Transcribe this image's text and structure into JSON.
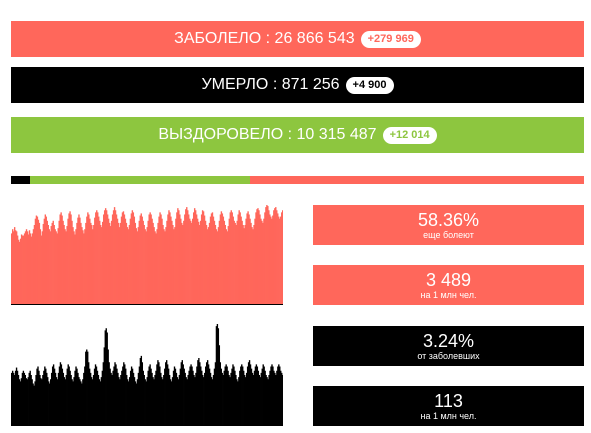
{
  "colors": {
    "cases": "#ff675b",
    "deaths": "#000000",
    "recovered": "#8dc63f"
  },
  "summary": {
    "cases": {
      "label": "ЗАБОЛЕЛО : 26 866 543",
      "delta": "+279 969"
    },
    "deaths": {
      "label": "УМЕРЛО : 871 256",
      "delta": "+4 900"
    },
    "recovered": {
      "label": "ВЫЗДОРОВЕЛО : 10 315 487",
      "delta": "+12 014"
    }
  },
  "ratio_bar": {
    "segments": [
      {
        "name": "deaths",
        "fraction": 0.0324,
        "color": "#000000"
      },
      {
        "name": "recovered",
        "fraction": 0.384,
        "color": "#8dc63f"
      },
      {
        "name": "active",
        "fraction": 0.5836,
        "color": "#ff675b"
      }
    ]
  },
  "stats": {
    "active_percent": {
      "value": "58.36%",
      "caption": "еще болеют"
    },
    "cases_per_million": {
      "value": "3 489",
      "caption": "на 1 млн чел."
    },
    "mortality": {
      "value": "3.24%",
      "caption": "от заболевших"
    },
    "deaths_per_million": {
      "value": "113",
      "caption": "на 1 млн чел."
    }
  },
  "chart_data": [
    {
      "type": "bar",
      "series": [
        {
          "color": "#ff675b",
          "values": [
            68,
            72,
            70,
            74,
            71,
            70,
            66,
            62,
            60,
            63,
            67,
            66,
            66,
            68,
            70,
            72,
            70,
            67,
            71,
            68,
            65,
            68,
            72,
            76,
            82,
            85,
            84,
            81,
            78,
            72,
            66,
            70,
            77,
            82,
            86,
            84,
            80,
            76,
            72,
            70,
            75,
            78,
            80,
            76,
            72,
            70,
            68,
            73,
            80,
            86,
            88,
            85,
            80,
            76,
            72,
            70,
            75,
            82,
            87,
            89,
            86,
            80,
            74,
            70,
            67,
            72,
            78,
            83,
            86,
            83,
            78,
            74,
            71,
            68,
            72,
            78,
            84,
            88,
            86,
            82,
            78,
            76,
            72,
            76,
            83,
            88,
            90,
            88,
            84,
            80,
            76,
            74,
            79,
            86,
            90,
            92,
            90,
            86,
            82,
            78,
            75,
            80,
            86,
            90,
            93,
            90,
            86,
            82,
            78,
            74,
            78,
            84,
            88,
            89,
            86,
            82,
            78,
            74,
            72,
            76,
            82,
            87,
            90,
            88,
            84,
            78,
            73,
            70,
            74,
            80,
            85,
            87,
            84,
            80,
            76,
            72,
            70,
            74,
            80,
            86,
            88,
            86,
            82,
            78,
            74,
            70,
            68,
            72,
            78,
            84,
            88,
            86,
            82,
            76,
            72,
            70,
            74,
            80,
            86,
            90,
            88,
            84,
            80,
            76,
            72,
            74,
            82,
            88,
            92,
            90,
            86,
            82,
            78,
            76,
            80,
            86,
            91,
            93,
            90,
            86,
            82,
            80,
            78,
            82,
            88,
            92,
            90,
            86,
            82,
            79,
            76,
            80,
            86,
            90,
            89,
            85,
            80,
            76,
            72,
            74,
            78,
            84,
            87,
            88,
            84,
            80,
            76,
            72,
            70,
            74,
            80,
            86,
            89,
            87,
            84,
            80,
            76,
            72,
            70,
            75,
            82,
            88,
            90,
            88,
            84,
            80,
            78,
            76,
            80,
            86,
            90,
            88,
            84,
            80,
            76,
            73,
            76,
            82,
            87,
            89,
            86,
            82,
            78,
            74,
            72,
            76,
            82,
            88,
            91,
            92,
            90,
            86,
            82,
            80,
            78,
            82,
            88,
            93,
            95,
            94,
            90,
            86,
            84,
            82,
            85,
            90,
            92,
            93,
            90,
            87,
            84,
            82,
            84,
            88,
            90
          ]
        }
      ]
    },
    {
      "type": "bar",
      "series": [
        {
          "color": "#000000",
          "values": [
            50,
            52,
            50,
            48,
            52,
            55,
            52,
            48,
            44,
            42,
            45,
            50,
            52,
            50,
            48,
            45,
            44,
            46,
            50,
            52,
            48,
            44,
            40,
            38,
            42,
            48,
            54,
            56,
            52,
            48,
            45,
            44,
            48,
            52,
            56,
            54,
            50,
            46,
            42,
            40,
            44,
            50,
            56,
            58,
            54,
            50,
            46,
            44,
            50,
            56,
            60,
            58,
            54,
            50,
            46,
            44,
            48,
            54,
            58,
            56,
            52,
            48,
            44,
            42,
            46,
            52,
            56,
            54,
            50,
            46,
            44,
            42,
            40,
            44,
            50,
            56,
            70,
            72,
            70,
            60,
            54,
            50,
            46,
            44,
            48,
            54,
            58,
            56,
            52,
            48,
            44,
            42,
            46,
            52,
            60,
            74,
            90,
            92,
            88,
            72,
            60,
            54,
            50,
            48,
            52,
            56,
            60,
            58,
            54,
            50,
            46,
            44,
            48,
            52,
            56,
            60,
            58,
            54,
            48,
            44,
            42,
            46,
            52,
            56,
            54,
            50,
            46,
            42,
            40,
            44,
            50,
            56,
            64,
            66,
            60,
            52,
            48,
            44,
            42,
            46,
            52,
            56,
            58,
            54,
            50,
            46,
            44,
            48,
            52,
            58,
            62,
            60,
            56,
            50,
            46,
            44,
            48,
            54,
            60,
            62,
            58,
            54,
            48,
            44,
            42,
            46,
            52,
            56,
            54,
            50,
            46,
            44,
            48,
            54,
            60,
            62,
            58,
            54,
            50,
            46,
            44,
            48,
            52,
            56,
            58,
            56,
            52,
            48,
            46,
            50,
            56,
            62,
            64,
            60,
            56,
            52,
            48,
            46,
            50,
            56,
            60,
            62,
            58,
            54,
            50,
            46,
            44,
            48,
            54,
            60,
            94,
            96,
            92,
            76,
            60,
            54,
            50,
            48,
            52,
            56,
            58,
            56,
            52,
            48,
            46,
            50,
            54,
            58,
            56,
            52,
            48,
            44,
            42,
            46,
            52,
            56,
            58,
            56,
            52,
            48,
            46,
            50,
            56,
            60,
            62,
            58,
            54,
            50,
            48,
            52,
            56,
            58,
            56,
            52,
            48,
            46,
            50,
            54,
            58,
            56,
            52,
            48,
            46,
            44,
            48,
            52,
            56,
            58,
            56,
            52,
            50,
            48,
            52,
            56,
            58,
            56,
            52,
            50,
            48
          ]
        }
      ]
    }
  ]
}
